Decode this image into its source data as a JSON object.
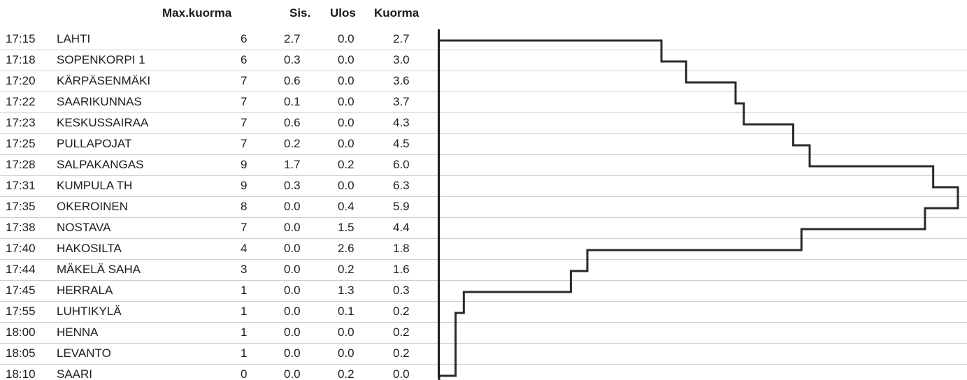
{
  "headers": {
    "max": "Max.kuorma",
    "sis": "Sis.",
    "ulos": "Ulos",
    "kuorma": "Kuorma"
  },
  "rows": [
    {
      "time": "17:15",
      "stop": "LAHTI",
      "max": "6",
      "sis": "2.7",
      "ulos": "0.0",
      "kuorma": "2.7"
    },
    {
      "time": "17:18",
      "stop": "SOPENKORPI 1",
      "max": "6",
      "sis": "0.3",
      "ulos": "0.0",
      "kuorma": "3.0"
    },
    {
      "time": "17:20",
      "stop": "KÄRPÄSENMÄKI",
      "max": "7",
      "sis": "0.6",
      "ulos": "0.0",
      "kuorma": "3.6"
    },
    {
      "time": "17:22",
      "stop": "SAARIKUNNAS",
      "max": "7",
      "sis": "0.1",
      "ulos": "0.0",
      "kuorma": "3.7"
    },
    {
      "time": "17:23",
      "stop": "KESKUSSAIRAA",
      "max": "7",
      "sis": "0.6",
      "ulos": "0.0",
      "kuorma": "4.3"
    },
    {
      "time": "17:25",
      "stop": "PULLAPOJAT",
      "max": "7",
      "sis": "0.2",
      "ulos": "0.0",
      "kuorma": "4.5"
    },
    {
      "time": "17:28",
      "stop": "SALPAKANGAS",
      "max": "9",
      "sis": "1.7",
      "ulos": "0.2",
      "kuorma": "6.0"
    },
    {
      "time": "17:31",
      "stop": "KUMPULA TH",
      "max": "9",
      "sis": "0.3",
      "ulos": "0.0",
      "kuorma": "6.3"
    },
    {
      "time": "17:35",
      "stop": "OKEROINEN",
      "max": "8",
      "sis": "0.0",
      "ulos": "0.4",
      "kuorma": "5.9"
    },
    {
      "time": "17:38",
      "stop": "NOSTAVA",
      "max": "7",
      "sis": "0.0",
      "ulos": "1.5",
      "kuorma": "4.4"
    },
    {
      "time": "17:40",
      "stop": "HAKOSILTA",
      "max": "4",
      "sis": "0.0",
      "ulos": "2.6",
      "kuorma": "1.8"
    },
    {
      "time": "17:44",
      "stop": "MÄKELÄ SAHA",
      "max": "3",
      "sis": "0.0",
      "ulos": "0.2",
      "kuorma": "1.6"
    },
    {
      "time": "17:45",
      "stop": "HERRALA",
      "max": "1",
      "sis": "0.0",
      "ulos": "1.3",
      "kuorma": "0.3"
    },
    {
      "time": "17:55",
      "stop": "LUHTIKYLÄ",
      "max": "1",
      "sis": "0.0",
      "ulos": "0.1",
      "kuorma": "0.2"
    },
    {
      "time": "18:00",
      "stop": "HENNA",
      "max": "1",
      "sis": "0.0",
      "ulos": "0.0",
      "kuorma": "0.2"
    },
    {
      "time": "18:05",
      "stop": "LEVANTO",
      "max": "1",
      "sis": "0.0",
      "ulos": "0.0",
      "kuorma": "0.2"
    },
    {
      "time": "18:10",
      "stop": "SAARI",
      "max": "0",
      "sis": "0.0",
      "ulos": "0.2",
      "kuorma": "0.0"
    }
  ],
  "chart_data": {
    "type": "area",
    "orientation": "horizontal-step",
    "categories": [
      "LAHTI",
      "SOPENKORPI 1",
      "KÄRPÄSENMÄKI",
      "SAARIKUNNAS",
      "KESKUSSAIRAA",
      "PULLAPOJAT",
      "SALPAKANGAS",
      "KUMPULA TH",
      "OKEROINEN",
      "NOSTAVA",
      "HAKOSILTA",
      "MÄKELÄ SAHA",
      "HERRALA",
      "LUHTIKYLÄ",
      "HENNA",
      "LEVANTO",
      "SAARI"
    ],
    "values": [
      2.7,
      3.0,
      3.6,
      3.7,
      4.3,
      4.5,
      6.0,
      6.3,
      5.9,
      4.4,
      1.8,
      1.6,
      0.3,
      0.2,
      0.2,
      0.2,
      0.0
    ],
    "xlim": [
      0,
      6.3
    ],
    "grid": true,
    "line_color": "#2a2a2a"
  }
}
